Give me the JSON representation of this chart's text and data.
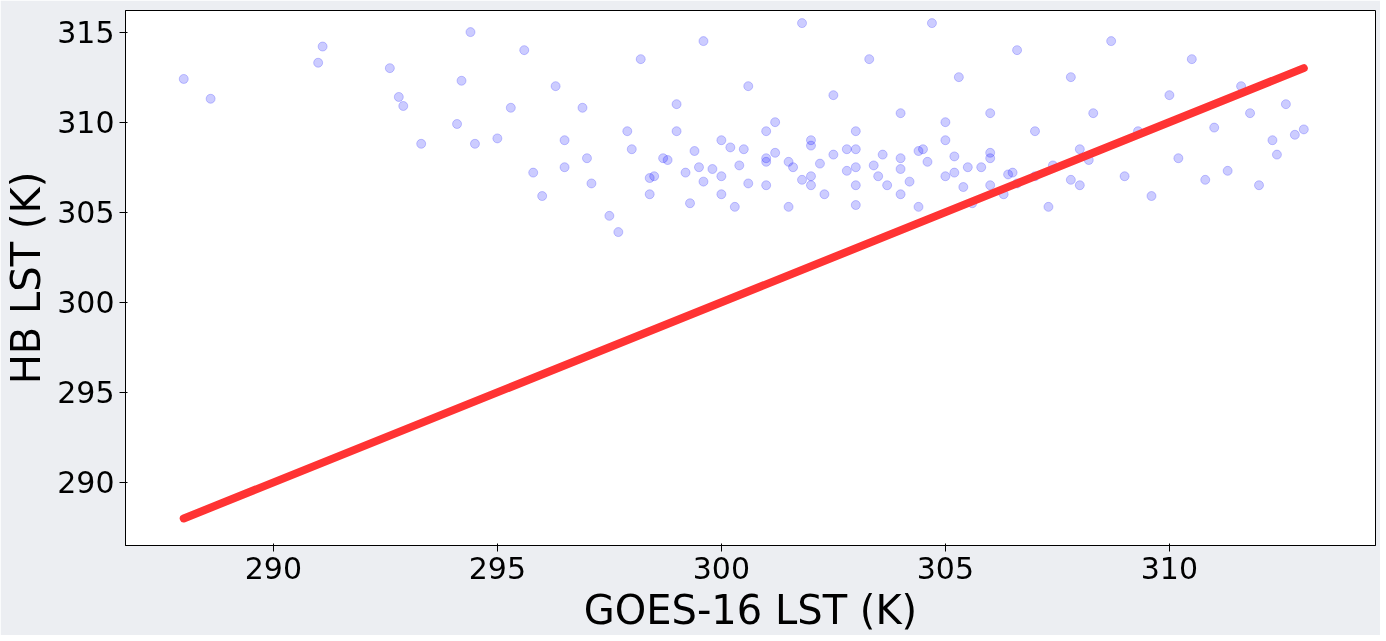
{
  "chart_data": {
    "type": "scatter",
    "xlabel": "GOES-16 LST (K)",
    "ylabel": "HB LST (K)",
    "xlim": [
      286.7,
      314.6
    ],
    "ylim": [
      286.5,
      316.2
    ],
    "xticks": [
      290,
      295,
      300,
      305,
      310
    ],
    "yticks": [
      290,
      295,
      300,
      305,
      310,
      315
    ],
    "grid": false,
    "series": [
      {
        "color": "#0000ff",
        "marker": "circle",
        "x": [
          299.2,
          299.8,
          300.4,
          301,
          301.6,
          302.2,
          302.8,
          303.4,
          304,
          304.6,
          305.2,
          305.8,
          306.4,
          299.4,
          300.2,
          301.2,
          302,
          302.8,
          303.6,
          304.4,
          305.2,
          306,
          299.6,
          300.6,
          301.8,
          303,
          304.2,
          305.4,
          306.6,
          307.4,
          307.8,
          308.2,
          298.8,
          298.4,
          288,
          288.6,
          291,
          291.1,
          292.6,
          292.8,
          292.9,
          293.3,
          294.1,
          294.2,
          294.4,
          294.5,
          295.0,
          295.3,
          295.6,
          295.8,
          296,
          296.3,
          296.5,
          296.9,
          297.1,
          297.5,
          297.7,
          297.9,
          298.2,
          298.4,
          298.7,
          299,
          299.3,
          299.6,
          300,
          300,
          300.3,
          300.6,
          301,
          301,
          301.2,
          301.5,
          301.8,
          302,
          302,
          302.3,
          302.5,
          303,
          303,
          303,
          303.3,
          303.7,
          304,
          304,
          304.4,
          304.7,
          305,
          305,
          305.3,
          305.6,
          306,
          306,
          306.3,
          306.6,
          307,
          307,
          307.3,
          307.8,
          308,
          308,
          308.3,
          308.7,
          309,
          309.3,
          309.6,
          310,
          310.2,
          310.5,
          310.8,
          311,
          311.3,
          311.6,
          311.8,
          312,
          312.3,
          312.6,
          312.8,
          313,
          312.4,
          299.5,
          300.5,
          301.5,
          302.5,
          303.5,
          304.5,
          305.5,
          306.5,
          300,
          302,
          304,
          306,
          299,
          301,
          303,
          305,
          298.5,
          298,
          297,
          296.5
        ],
        "values": [
          307.2,
          307.4,
          307.6,
          307.8,
          307.5,
          307.7,
          307.3,
          307.6,
          307.4,
          307.8,
          307.2,
          307.5,
          307.1,
          308.4,
          308.6,
          308.3,
          308.7,
          308.5,
          308.2,
          308.4,
          308.1,
          308.3,
          306.7,
          306.6,
          306.8,
          306.5,
          306.7,
          306.4,
          306.6,
          307.6,
          306.8,
          307.9,
          307.9,
          306.9,
          312.4,
          311.3,
          313.3,
          314.2,
          313,
          311.4,
          310.9,
          308.8,
          309.9,
          312.3,
          315,
          308.8,
          309.1,
          310.8,
          314,
          307.2,
          305.9,
          312,
          307.5,
          310.8,
          306.6,
          304.8,
          303.9,
          309.5,
          313.5,
          306,
          308,
          311,
          305.5,
          314.5,
          307,
          309,
          305.3,
          312,
          306.5,
          308,
          310,
          305.3,
          315.5,
          307,
          309,
          306,
          311.5,
          305.4,
          307.5,
          309.5,
          313.5,
          306.5,
          308,
          310.5,
          305.3,
          315.5,
          307,
          309,
          312.5,
          305.5,
          308,
          310.5,
          306,
          314,
          307,
          309.5,
          305.3,
          312.5,
          306.5,
          308.5,
          310.5,
          314.5,
          307,
          309.5,
          305.9,
          311.5,
          308,
          313.5,
          306.8,
          309.7,
          307.3,
          312,
          310.5,
          306.5,
          309,
          311,
          309.3,
          309.6,
          308.2,
          307.5,
          308.5,
          307.8,
          308.2,
          307,
          308.5,
          307.5,
          307.2,
          306,
          306.5,
          306,
          306.5,
          309.5,
          309.5,
          308.5,
          310,
          307,
          308.5,
          308,
          309
        ]
      },
      {
        "type": "line",
        "marker": "none",
        "color": "#ff3333",
        "x": [
          288,
          313
        ],
        "values": [
          288,
          313
        ]
      }
    ]
  }
}
